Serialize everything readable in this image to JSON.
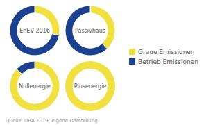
{
  "chart_data": {
    "type": "donut",
    "categories": [
      "Graue Emissionen",
      "Betrieb Emissionen"
    ],
    "colors": [
      "#F0E040",
      "#1B4090"
    ],
    "series": [
      {
        "name": "EnEV 2016",
        "values": [
          28,
          72
        ]
      },
      {
        "name": "Passivhaus",
        "values": [
          38,
          62
        ]
      },
      {
        "name": "Nullenergie",
        "values": [
          87,
          13
        ]
      },
      {
        "name": "Plusenergie",
        "values": [
          100,
          0
        ]
      }
    ],
    "legend": "right",
    "annotations": [
      "Quelle: UBA 2019, eigene Darstellung"
    ]
  }
}
